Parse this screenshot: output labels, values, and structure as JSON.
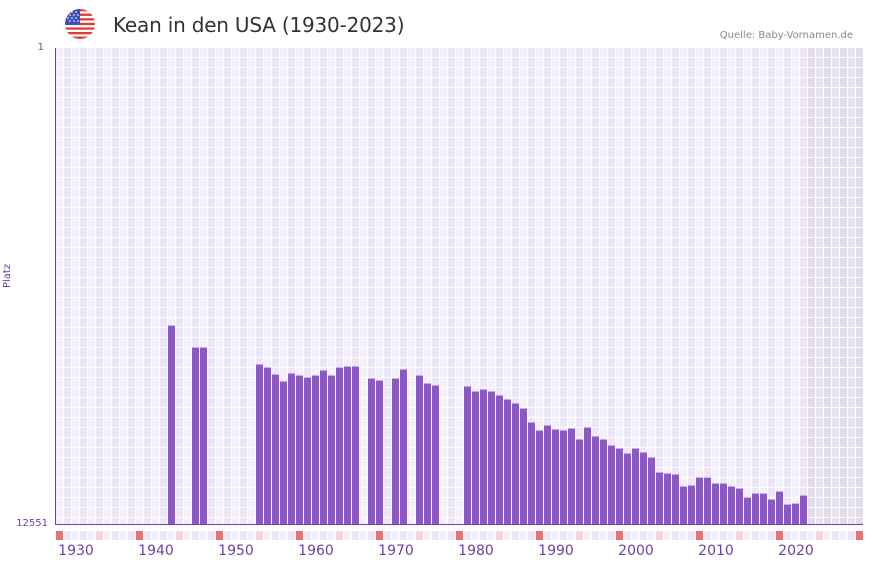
{
  "header": {
    "title": "Kean in den USA (1930-2023)",
    "source": "Quelle: Baby-Vornamen.de",
    "flag_icon": "us-flag-icon"
  },
  "axes": {
    "y_label": "Platz",
    "y_top_tick": "1",
    "y_bottom_tick": "12551",
    "x_ticks": [
      "1930",
      "1940",
      "1950",
      "1960",
      "1970",
      "1980",
      "1990",
      "2000",
      "2010",
      "2020"
    ]
  },
  "colors": {
    "bar": "#8e57c7",
    "axis": "#6f3fa6",
    "grid_bg_a": "#f3effb",
    "grid_bg_b": "#ece6f7",
    "future_bg": "#e4dfee",
    "decade_marker": "#e57373",
    "half_decade_marker": "#f5d5dd"
  },
  "chart_data": {
    "type": "bar",
    "title": "Kean in den USA (1930-2023)",
    "xlabel": "",
    "ylabel": "Platz",
    "y_inverted": true,
    "ylim": [
      12551,
      1
    ],
    "xlim": [
      1928,
      2028
    ],
    "grid": true,
    "future_shaded_from": 2022,
    "note": "Values are rank (Platz); lower rank = more popular. Years without bars were unranked.",
    "x": [
      1942,
      1945,
      1946,
      1953,
      1954,
      1955,
      1956,
      1957,
      1958,
      1959,
      1960,
      1961,
      1962,
      1963,
      1964,
      1965,
      1967,
      1968,
      1970,
      1971,
      1973,
      1974,
      1975,
      1979,
      1980,
      1981,
      1982,
      1983,
      1984,
      1985,
      1986,
      1987,
      1988,
      1989,
      1990,
      1991,
      1992,
      1993,
      1994,
      1995,
      1996,
      1997,
      1998,
      1999,
      2000,
      2001,
      2002,
      2003,
      2004,
      2005,
      2006,
      2007,
      2008,
      2009,
      2010,
      2011,
      2012,
      2013,
      2014,
      2015,
      2016,
      2017,
      2018,
      2019,
      2020,
      2021
    ],
    "values": [
      7319,
      7899,
      7899,
      8347,
      8426,
      8611,
      8795,
      8584,
      8637,
      8690,
      8637,
      8505,
      8637,
      8426,
      8400,
      8400,
      8716,
      8769,
      8716,
      8479,
      8637,
      8848,
      8900,
      8927,
      9059,
      9006,
      9059,
      9164,
      9270,
      9375,
      9507,
      9876,
      10087,
      9955,
      10061,
      10087,
      10034,
      10324,
      10008,
      10245,
      10324,
      10483,
      10562,
      10694,
      10562,
      10667,
      10799,
      11195,
      11221,
      11247,
      11564,
      11538,
      11327,
      11327,
      11485,
      11485,
      11564,
      11617,
      11854,
      11749,
      11749,
      11907,
      11696,
      12039,
      12013,
      11802
    ]
  }
}
